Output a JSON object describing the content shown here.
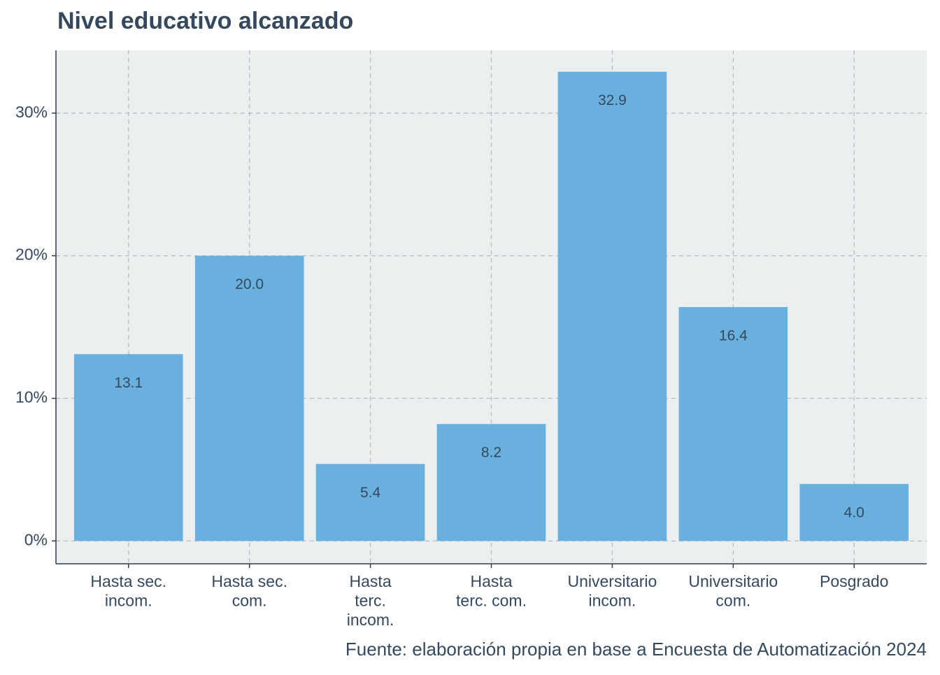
{
  "chart_data": {
    "type": "bar",
    "title": "Nivel educativo alcanzado",
    "caption": "Fuente: elaboración propia en base a Encuesta de Automatización 2024",
    "categories": [
      "Hasta sec.\nincom.",
      "Hasta sec.\ncom.",
      "Hasta\nterc.\nincom.",
      "Hasta\nterc. com.",
      "Universitario\nincom.",
      "Universitario\ncom.",
      "Posgrado"
    ],
    "values": [
      13.1,
      20.0,
      5.4,
      8.2,
      32.9,
      16.4,
      4.0
    ],
    "value_labels": [
      "13.1",
      "20.0",
      "5.4",
      "8.2",
      "32.9",
      "16.4",
      "4.0"
    ],
    "color": "#6ab0de",
    "ylim": [
      -1.6,
      34.4
    ],
    "yticks": [
      {
        "value": 0,
        "label": "0%"
      },
      {
        "value": 10,
        "label": "10%"
      },
      {
        "value": 20,
        "label": "20%"
      },
      {
        "value": 30,
        "label": "30%"
      }
    ],
    "grid": true
  }
}
